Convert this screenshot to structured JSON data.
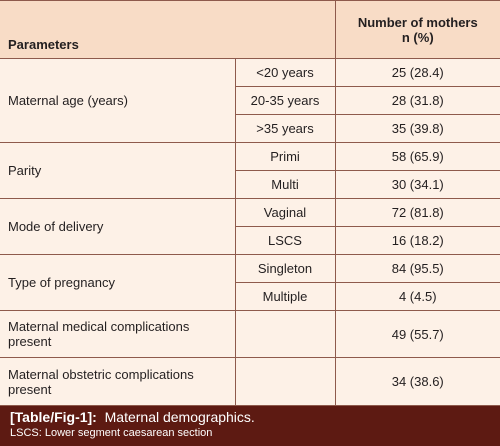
{
  "table": {
    "header": {
      "parameters": "Parameters",
      "count_line1": "Number of mothers",
      "count_line2": "n (%)"
    },
    "groups": [
      {
        "label": "Maternal age (years)",
        "rows": [
          {
            "sub": "<20 years",
            "value": "25 (28.4)"
          },
          {
            "sub": "20-35 years",
            "value": "28 (31.8)"
          },
          {
            "sub": ">35 years",
            "value": "35 (39.8)"
          }
        ]
      },
      {
        "label": "Parity",
        "rows": [
          {
            "sub": "Primi",
            "value": "58 (65.9)"
          },
          {
            "sub": "Multi",
            "value": "30 (34.1)"
          }
        ]
      },
      {
        "label": "Mode of delivery",
        "rows": [
          {
            "sub": "Vaginal",
            "value": "72 (81.8)"
          },
          {
            "sub": "LSCS",
            "value": "16 (18.2)"
          }
        ]
      },
      {
        "label": "Type of pregnancy",
        "rows": [
          {
            "sub": "Singleton",
            "value": "84 (95.5)"
          },
          {
            "sub": "Multiple",
            "value": "4 (4.5)"
          }
        ]
      },
      {
        "label": "Maternal medical complications present",
        "rows": [
          {
            "value": "49 (55.7)"
          }
        ]
      },
      {
        "label": "Maternal obstetric complications present",
        "rows": [
          {
            "value": "34 (38.6)"
          }
        ]
      }
    ]
  },
  "caption": {
    "tag": "[Table/Fig-1]:",
    "title": "Maternal demographics.",
    "note": "LSCS: Lower segment caesarean section"
  }
}
